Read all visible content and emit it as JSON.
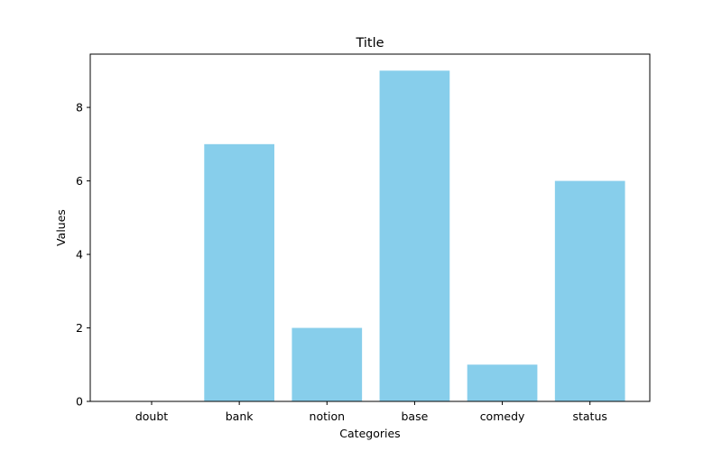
{
  "chart_data": {
    "type": "bar",
    "title": "Title",
    "xlabel": "Categories",
    "ylabel": "Values",
    "categories": [
      "doubt",
      "bank",
      "notion",
      "base",
      "comedy",
      "status"
    ],
    "values": [
      0,
      7,
      2,
      9,
      1,
      6
    ],
    "ylim": [
      0,
      9.45
    ],
    "yticks": [
      0,
      2,
      4,
      6,
      8
    ],
    "grid": false,
    "bar_color": "#87CEEB"
  }
}
